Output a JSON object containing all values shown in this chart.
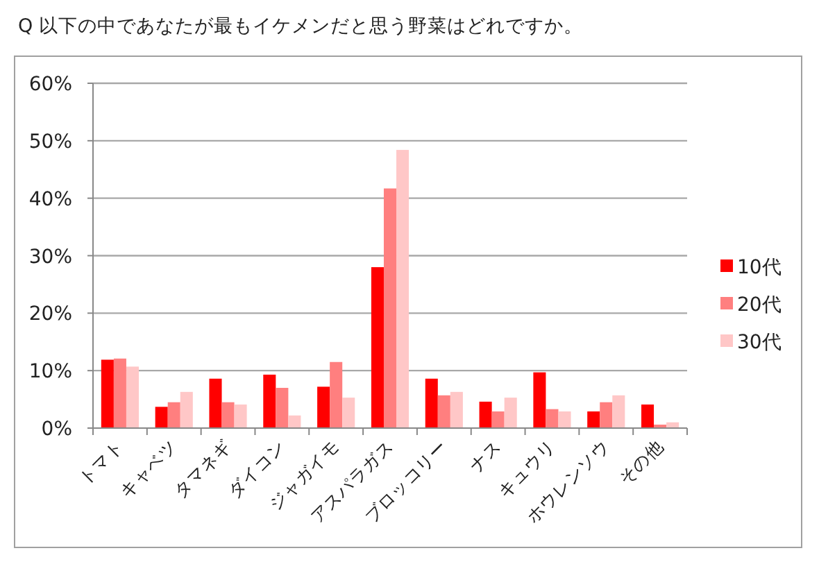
{
  "chart_data": {
    "type": "bar",
    "title": "Q 以下の中であなたが最もイケメンだと思う野菜はどれですか。",
    "categories": [
      "トマト",
      "キャベツ",
      "タマネギ",
      "ダイコン",
      "ジャガイモ",
      "アスパラガス",
      "ブロッコリー",
      "ナス",
      "キュウリ",
      "ホウレンソウ",
      "その他"
    ],
    "series": [
      {
        "name": "10代",
        "color": "#ff0000",
        "values": [
          11.9,
          3.7,
          8.6,
          9.3,
          7.2,
          28.0,
          8.6,
          4.6,
          9.7,
          2.9,
          4.1
        ]
      },
      {
        "name": "20代",
        "color": "#ff7f7f",
        "values": [
          12.1,
          4.5,
          4.5,
          7.0,
          11.5,
          41.7,
          5.7,
          2.9,
          3.3,
          4.5,
          0.6
        ]
      },
      {
        "name": "30代",
        "color": "#ffc7c7",
        "values": [
          10.7,
          6.3,
          4.1,
          2.2,
          5.3,
          48.4,
          6.3,
          5.3,
          2.9,
          5.7,
          1.0
        ]
      }
    ],
    "ylim": [
      0,
      60
    ],
    "yticks": [
      {
        "value": 0,
        "label": "0%"
      },
      {
        "value": 10,
        "label": "10%"
      },
      {
        "value": 20,
        "label": "20%"
      },
      {
        "value": 30,
        "label": "30%"
      },
      {
        "value": 40,
        "label": "40%"
      },
      {
        "value": 50,
        "label": "50%"
      },
      {
        "value": 60,
        "label": "60%"
      }
    ],
    "grid": "y",
    "legend": "right"
  }
}
